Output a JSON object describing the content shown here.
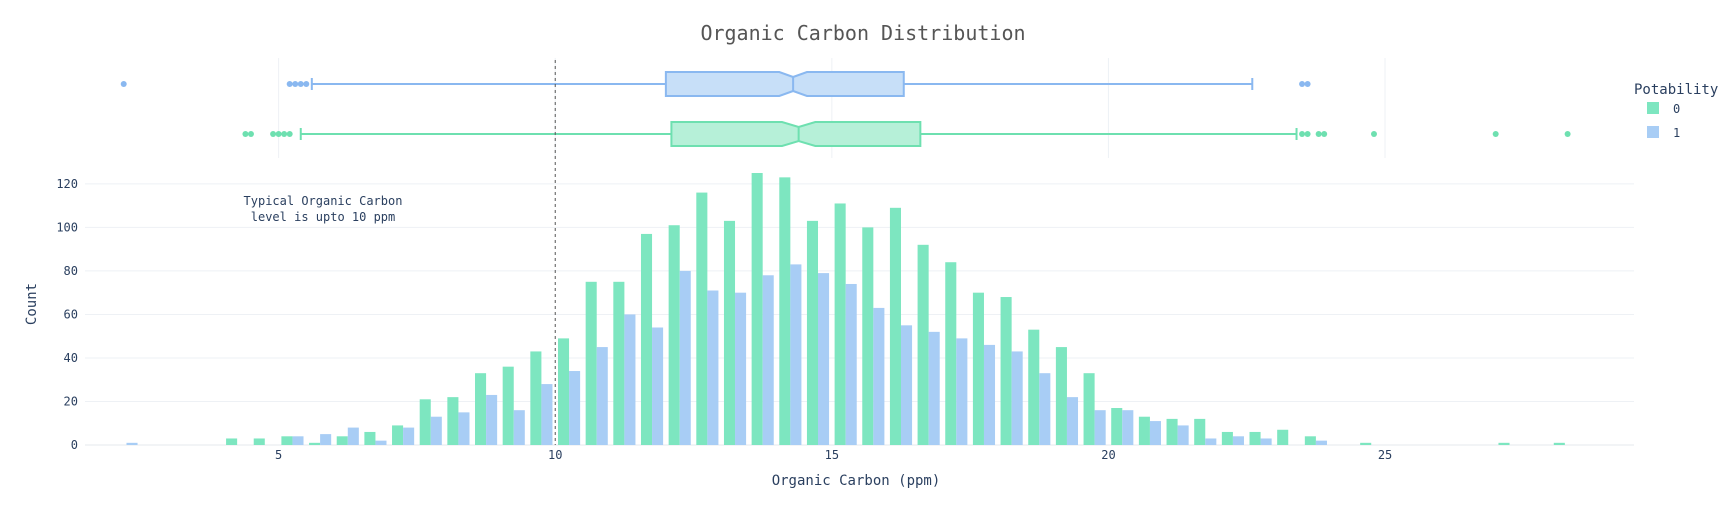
{
  "chart_data": {
    "title": "Organic Carbon Distribution",
    "xlabel": "Organic Carbon (ppm)",
    "ylabel": "Count",
    "xlim": [
      1.5,
      29.5
    ],
    "ylim": [
      0,
      125
    ],
    "x_ticks": [
      5,
      10,
      15,
      20,
      25
    ],
    "y_ticks": [
      0,
      20,
      40,
      60,
      80,
      100,
      120
    ],
    "grid": true,
    "legend": {
      "title": "Potability",
      "placement": "top-right"
    },
    "annotation": {
      "lines": [
        "Typical Organic Carbon",
        "level is upto 10 ppm"
      ],
      "vline_x": 10
    },
    "histogram": {
      "type": "bar",
      "bin_width": 0.5,
      "bin_centers": [
        2.25,
        2.75,
        3.25,
        3.75,
        4.25,
        4.75,
        5.25,
        5.75,
        6.25,
        6.75,
        7.25,
        7.75,
        8.25,
        8.75,
        9.25,
        9.75,
        10.25,
        10.75,
        11.25,
        11.75,
        12.25,
        12.75,
        13.25,
        13.75,
        14.25,
        14.75,
        15.25,
        15.75,
        16.25,
        16.75,
        17.25,
        17.75,
        18.25,
        18.75,
        19.25,
        19.75,
        20.25,
        20.75,
        21.25,
        21.75,
        22.25,
        22.75,
        23.25,
        23.75,
        24.25,
        24.75,
        25.25,
        25.75,
        26.25,
        26.75,
        27.25,
        27.75,
        28.25,
        28.75
      ],
      "series": [
        {
          "name": "0",
          "color": "#7de6c0",
          "values": [
            0,
            0,
            0,
            0,
            3,
            3,
            4,
            1,
            4,
            6,
            9,
            21,
            22,
            33,
            36,
            43,
            49,
            75,
            75,
            97,
            101,
            116,
            103,
            125,
            123,
            103,
            111,
            100,
            109,
            92,
            84,
            70,
            68,
            53,
            45,
            33,
            17,
            13,
            12,
            12,
            6,
            6,
            7,
            4,
            0,
            1,
            0,
            0,
            0,
            0,
            1,
            0,
            1,
            0
          ]
        },
        {
          "name": "1",
          "color": "#a8cdf5",
          "values": [
            1,
            0,
            0,
            0,
            0,
            0,
            4,
            5,
            8,
            2,
            8,
            13,
            15,
            23,
            16,
            28,
            34,
            45,
            60,
            54,
            80,
            71,
            70,
            78,
            83,
            79,
            74,
            63,
            55,
            52,
            49,
            46,
            43,
            33,
            22,
            16,
            16,
            11,
            9,
            3,
            4,
            3,
            0,
            2,
            0,
            0,
            0,
            0,
            0,
            0,
            0,
            0,
            0,
            0
          ]
        }
      ]
    },
    "boxplots": [
      {
        "name": "1",
        "color": "#8ab8f0",
        "fill": "#c7dff8",
        "q1": 12.0,
        "median": 14.3,
        "q3": 16.3,
        "notch_low": 14.05,
        "notch_high": 14.55,
        "whisker_low": 5.6,
        "whisker_high": 22.6,
        "outliers": [
          2.2,
          5.2,
          5.3,
          5.4,
          5.5,
          23.5,
          23.6
        ]
      },
      {
        "name": "0",
        "color": "#6ee0b0",
        "fill": "#b6f0d8",
        "q1": 12.1,
        "median": 14.4,
        "q3": 16.6,
        "notch_low": 14.1,
        "notch_high": 14.7,
        "whisker_low": 5.4,
        "whisker_high": 23.4,
        "outliers": [
          4.4,
          4.5,
          4.9,
          5.0,
          5.1,
          5.2,
          23.5,
          23.6,
          23.8,
          23.9,
          24.8,
          27.0,
          28.3
        ]
      }
    ]
  }
}
